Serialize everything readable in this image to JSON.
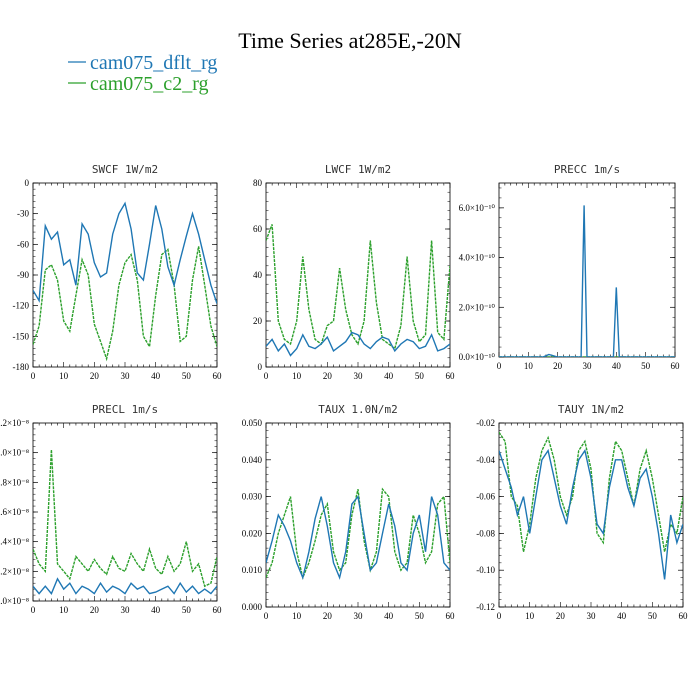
{
  "figure": {
    "title": "Time Series at285E,-20N",
    "legend": [
      {
        "name": "cam075_dflt_rg",
        "color": "#1f77b4"
      },
      {
        "name": "cam075_c2_rg",
        "color": "#2ca02c"
      }
    ]
  },
  "chart_data": [
    {
      "type": "line",
      "title": "SWCF   1W/m2",
      "xlim": [
        0,
        60
      ],
      "ylim": [
        -180,
        0
      ],
      "xticks": [
        "0",
        "10",
        "20",
        "30",
        "40",
        "50",
        "60"
      ],
      "yticks": [
        "0",
        "-30",
        "-60",
        "-90",
        "-120",
        "-150",
        "-180"
      ],
      "x": [
        0,
        2,
        4,
        6,
        8,
        10,
        12,
        14,
        16,
        18,
        20,
        22,
        24,
        26,
        28,
        30,
        32,
        34,
        36,
        38,
        40,
        42,
        44,
        46,
        48,
        50,
        52,
        54,
        56,
        58,
        60
      ],
      "series": [
        {
          "name": "cam075_dflt_rg",
          "values": [
            -105,
            -115,
            -42,
            -55,
            -48,
            -80,
            -75,
            -100,
            -40,
            -50,
            -78,
            -92,
            -88,
            -50,
            -30,
            -20,
            -45,
            -88,
            -95,
            -60,
            -22,
            -45,
            -82,
            -100,
            -75,
            -52,
            -30,
            -50,
            -75,
            -100,
            -118
          ]
        },
        {
          "name": "cam075_c2_rg",
          "values": [
            -158,
            -140,
            -85,
            -80,
            -95,
            -135,
            -145,
            -110,
            -75,
            -90,
            -138,
            -155,
            -172,
            -145,
            -100,
            -78,
            -70,
            -95,
            -150,
            -160,
            -110,
            -70,
            -65,
            -100,
            -155,
            -150,
            -95,
            -62,
            -100,
            -140,
            -160
          ]
        }
      ]
    },
    {
      "type": "line",
      "title": "LWCF   1W/m2",
      "xlim": [
        0,
        60
      ],
      "ylim": [
        0,
        80
      ],
      "xticks": [
        "0",
        "10",
        "20",
        "30",
        "40",
        "50",
        "60"
      ],
      "yticks": [
        "0",
        "20",
        "40",
        "60",
        "80"
      ],
      "x": [
        0,
        2,
        4,
        6,
        8,
        10,
        12,
        14,
        16,
        18,
        20,
        22,
        24,
        26,
        28,
        30,
        32,
        34,
        36,
        38,
        40,
        42,
        44,
        46,
        48,
        50,
        52,
        54,
        56,
        58,
        60
      ],
      "series": [
        {
          "name": "cam075_dflt_rg",
          "values": [
            9,
            12,
            7,
            10,
            5,
            8,
            14,
            9,
            8,
            10,
            13,
            7,
            9,
            11,
            15,
            14,
            10,
            8,
            11,
            13,
            12,
            7,
            10,
            12,
            11,
            8,
            9,
            14,
            7,
            8,
            10
          ]
        },
        {
          "name": "cam075_c2_rg",
          "values": [
            55,
            62,
            20,
            12,
            10,
            20,
            48,
            25,
            12,
            10,
            18,
            20,
            43,
            25,
            14,
            10,
            20,
            55,
            28,
            12,
            10,
            8,
            18,
            48,
            20,
            11,
            14,
            55,
            15,
            12,
            44
          ]
        }
      ]
    },
    {
      "type": "line",
      "title": "PRECC   1m/s",
      "xlim": [
        0,
        60
      ],
      "ylim": [
        0,
        7e-10
      ],
      "xticks": [
        "0",
        "10",
        "20",
        "30",
        "40",
        "50",
        "60"
      ],
      "yticks": [
        "0.0×10⁻¹⁰",
        "2.0×10⁻¹⁰",
        "4.0×10⁻¹⁰",
        "6.0×10⁻¹⁰"
      ],
      "x": [
        0,
        5,
        10,
        15,
        17,
        20,
        25,
        28,
        29,
        30,
        35,
        39,
        40,
        41,
        45,
        50,
        55,
        60
      ],
      "series": [
        {
          "name": "cam075_dflt_rg",
          "values": [
            0,
            0,
            0,
            0,
            1e-11,
            0,
            0,
            0,
            6.1e-10,
            0,
            0,
            0,
            2.8e-10,
            0,
            0,
            0,
            0,
            0
          ]
        },
        {
          "name": "cam075_c2_rg",
          "values": [
            0,
            0,
            0,
            0,
            0,
            0,
            0,
            0,
            0,
            0,
            0,
            0,
            0,
            0,
            0,
            0,
            0,
            0
          ]
        }
      ]
    },
    {
      "type": "line",
      "title": "PRECL   1m/s",
      "xlim": [
        0,
        60
      ],
      "ylim": [
        0,
        1.2e-08
      ],
      "xticks": [
        "0",
        "10",
        "20",
        "30",
        "40",
        "50",
        "60"
      ],
      "yticks": [
        "0.0×10⁻⁸",
        "0.2×10⁻⁸",
        "0.4×10⁻⁸",
        "0.6×10⁻⁸",
        "0.8×10⁻⁸",
        "1.0×10⁻⁸",
        "1.2×10⁻⁸"
      ],
      "x": [
        0,
        2,
        4,
        6,
        8,
        10,
        12,
        14,
        16,
        18,
        20,
        22,
        24,
        26,
        28,
        30,
        32,
        34,
        36,
        38,
        40,
        42,
        44,
        46,
        48,
        50,
        52,
        54,
        56,
        58,
        60
      ],
      "series": [
        {
          "name": "cam075_dflt_rg",
          "values": [
            0.1,
            0.05,
            0.1,
            0.05,
            0.15,
            0.08,
            0.12,
            0.05,
            0.1,
            0.08,
            0.05,
            0.12,
            0.06,
            0.1,
            0.08,
            0.05,
            0.12,
            0.08,
            0.1,
            0.05,
            0.06,
            0.08,
            0.1,
            0.05,
            0.12,
            0.06,
            0.1,
            0.05,
            0.08,
            0.05,
            0.1
          ]
        },
        {
          "name": "cam075_c2_rg",
          "values": [
            0.35,
            0.25,
            0.2,
            1.02,
            0.25,
            0.2,
            0.15,
            0.3,
            0.25,
            0.2,
            0.28,
            0.22,
            0.18,
            0.3,
            0.22,
            0.2,
            0.32,
            0.25,
            0.2,
            0.35,
            0.22,
            0.18,
            0.3,
            0.2,
            0.25,
            0.4,
            0.2,
            0.25,
            0.1,
            0.12,
            0.3
          ]
        }
      ]
    },
    {
      "type": "line",
      "title": "TAUX   1.0N/m2",
      "xlim": [
        0,
        60
      ],
      "ylim": [
        0,
        0.05
      ],
      "xticks": [
        "0",
        "10",
        "20",
        "30",
        "40",
        "50",
        "60"
      ],
      "yticks": [
        "0.000",
        "0.010",
        "0.020",
        "0.030",
        "0.040",
        "0.050"
      ],
      "x": [
        0,
        2,
        4,
        6,
        8,
        10,
        12,
        14,
        16,
        18,
        20,
        22,
        24,
        26,
        28,
        30,
        32,
        34,
        36,
        38,
        40,
        42,
        44,
        46,
        48,
        50,
        52,
        54,
        56,
        58,
        60
      ],
      "series": [
        {
          "name": "cam075_dflt_rg",
          "values": [
            0.012,
            0.018,
            0.025,
            0.022,
            0.018,
            0.012,
            0.008,
            0.015,
            0.024,
            0.03,
            0.022,
            0.012,
            0.008,
            0.015,
            0.028,
            0.03,
            0.02,
            0.01,
            0.012,
            0.02,
            0.028,
            0.022,
            0.012,
            0.01,
            0.02,
            0.025,
            0.015,
            0.03,
            0.025,
            0.012,
            0.01
          ]
        },
        {
          "name": "cam075_c2_rg",
          "values": [
            0.008,
            0.012,
            0.02,
            0.025,
            0.03,
            0.015,
            0.008,
            0.012,
            0.018,
            0.025,
            0.028,
            0.015,
            0.01,
            0.012,
            0.025,
            0.032,
            0.018,
            0.01,
            0.015,
            0.032,
            0.03,
            0.015,
            0.01,
            0.012,
            0.025,
            0.02,
            0.012,
            0.015,
            0.028,
            0.03,
            0.012
          ]
        }
      ]
    },
    {
      "type": "line",
      "title": "TAUY   1N/m2",
      "xlim": [
        0,
        60
      ],
      "ylim": [
        -0.12,
        -0.02
      ],
      "xticks": [
        "0",
        "10",
        "20",
        "30",
        "40",
        "50",
        "60"
      ],
      "yticks": [
        "-0.02",
        "-0.04",
        "-0.06",
        "-0.08",
        "-0.10",
        "-0.12"
      ],
      "x": [
        0,
        2,
        4,
        6,
        8,
        10,
        12,
        14,
        16,
        18,
        20,
        22,
        24,
        26,
        28,
        30,
        32,
        34,
        36,
        38,
        40,
        42,
        44,
        46,
        48,
        50,
        52,
        54,
        56,
        58,
        60
      ],
      "series": [
        {
          "name": "cam075_dflt_rg",
          "values": [
            -0.035,
            -0.045,
            -0.055,
            -0.07,
            -0.06,
            -0.08,
            -0.06,
            -0.04,
            -0.035,
            -0.05,
            -0.065,
            -0.075,
            -0.055,
            -0.04,
            -0.035,
            -0.05,
            -0.075,
            -0.08,
            -0.055,
            -0.04,
            -0.04,
            -0.055,
            -0.065,
            -0.05,
            -0.045,
            -0.06,
            -0.08,
            -0.105,
            -0.07,
            -0.085,
            -0.075
          ]
        },
        {
          "name": "cam075_c2_rg",
          "values": [
            -0.025,
            -0.03,
            -0.06,
            -0.065,
            -0.09,
            -0.075,
            -0.05,
            -0.035,
            -0.028,
            -0.04,
            -0.06,
            -0.07,
            -0.06,
            -0.035,
            -0.03,
            -0.045,
            -0.08,
            -0.085,
            -0.05,
            -0.03,
            -0.035,
            -0.05,
            -0.065,
            -0.045,
            -0.035,
            -0.05,
            -0.07,
            -0.09,
            -0.075,
            -0.08,
            -0.06
          ]
        }
      ]
    }
  ]
}
